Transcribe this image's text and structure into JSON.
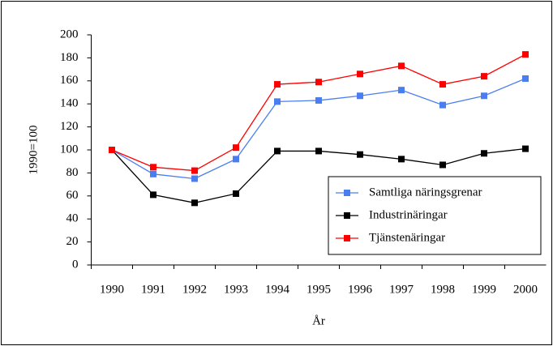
{
  "chart_data": {
    "type": "line",
    "categories": [
      "1990",
      "1991",
      "1992",
      "1993",
      "1994",
      "1995",
      "1996",
      "1997",
      "1998",
      "1999",
      "2000"
    ],
    "series": [
      {
        "name": "Samtliga näringsgrenar",
        "color": "#4a7ef0",
        "values": [
          100,
          79,
          75,
          92,
          142,
          143,
          147,
          152,
          139,
          147,
          162
        ]
      },
      {
        "name": "Industrinäringar",
        "color": "#000000",
        "values": [
          100,
          61,
          54,
          62,
          99,
          99,
          96,
          92,
          87,
          97,
          101
        ]
      },
      {
        "name": "Tjänstenäringar",
        "color": "#ff0000",
        "values": [
          100,
          85,
          82,
          102,
          157,
          159,
          166,
          173,
          157,
          164,
          183
        ]
      }
    ],
    "ylim": [
      0,
      200
    ],
    "yticks": [
      0,
      20,
      40,
      60,
      80,
      100,
      120,
      140,
      160,
      180,
      200
    ],
    "xlabel": "År",
    "ylabel": "1990=100",
    "grid": false,
    "legend": "lower right"
  }
}
